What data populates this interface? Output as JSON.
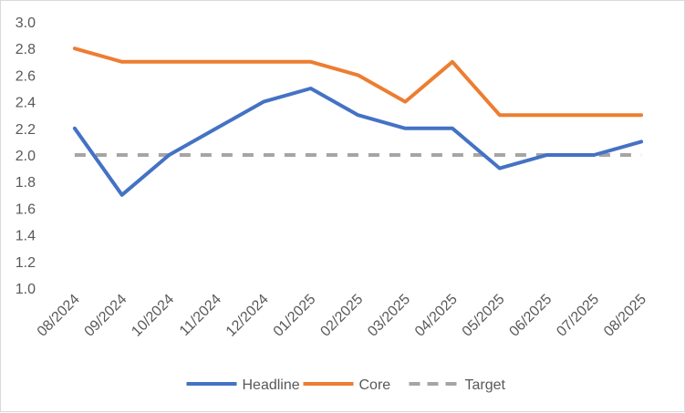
{
  "chart_data": {
    "type": "line",
    "title": "",
    "xlabel": "",
    "ylabel": "",
    "ylim": [
      1.0,
      3.0
    ],
    "y_ticks": [
      1.0,
      1.2,
      1.4,
      1.6,
      1.8,
      2.0,
      2.2,
      2.4,
      2.6,
      2.8,
      3.0
    ],
    "y_tick_labels": [
      "1.0",
      "1.2",
      "1.4",
      "1.6",
      "1.8",
      "2.0",
      "2.2",
      "2.4",
      "2.6",
      "2.8",
      "3.0"
    ],
    "grid": false,
    "legend_position": "bottom",
    "categories": [
      "08/2024",
      "09/2024",
      "10/2024",
      "11/2024",
      "12/2024",
      "01/2025",
      "02/2025",
      "03/2025",
      "04/2025",
      "05/2025",
      "06/2025",
      "07/2025",
      "08/2025"
    ],
    "series": [
      {
        "name": "Headline",
        "color": "#4472c4",
        "dash": "solid",
        "values": [
          2.2,
          1.7,
          2.0,
          2.2,
          2.4,
          2.5,
          2.3,
          2.2,
          2.2,
          1.9,
          2.0,
          2.0,
          2.1
        ]
      },
      {
        "name": "Core",
        "color": "#ed7d31",
        "dash": "solid",
        "values": [
          2.8,
          2.7,
          2.7,
          2.7,
          2.7,
          2.7,
          2.6,
          2.4,
          2.7,
          2.3,
          2.3,
          2.3,
          2.3
        ]
      },
      {
        "name": "Target",
        "color": "#a5a5a5",
        "dash": "dashed",
        "values": [
          2.0,
          2.0,
          2.0,
          2.0,
          2.0,
          2.0,
          2.0,
          2.0,
          2.0,
          2.0,
          2.0,
          2.0,
          2.0
        ]
      }
    ]
  }
}
